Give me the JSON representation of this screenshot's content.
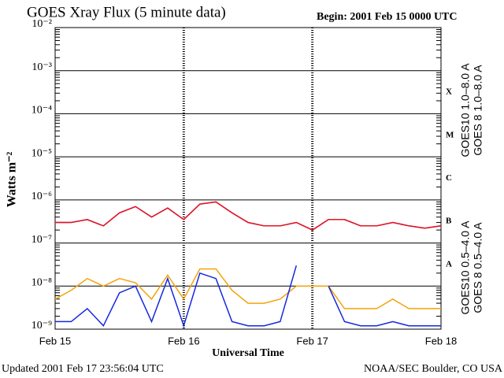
{
  "chart_data": {
    "type": "line",
    "title": "GOES Xray Flux (5 minute data)",
    "subtitle": "Begin:  2001 Feb 15 0000 UTC",
    "y_label": "Watts m⁻²",
    "x_label": "Universal Time",
    "footer_left": "Updated 2001 Feb 17 23:56:04 UTC",
    "footer_right": "NOAA/SEC Boulder, CO USA",
    "log_y": true,
    "grid": true,
    "flare_classes": [
      "A",
      "B",
      "C",
      "M",
      "X"
    ],
    "xlim": [
      0,
      72
    ],
    "xticks": [
      {
        "value": 0,
        "label": "Feb 15"
      },
      {
        "value": 24,
        "label": "Feb 16"
      },
      {
        "value": 48,
        "label": "Feb 17"
      },
      {
        "value": 72,
        "label": "Feb 18"
      }
    ],
    "ylim": [
      1e-09,
      0.01
    ],
    "yticks": [
      {
        "value": 1e-09,
        "label": "10⁻⁹"
      },
      {
        "value": 1e-08,
        "label": "10⁻⁸"
      },
      {
        "value": 1e-07,
        "label": "10⁻⁷"
      },
      {
        "value": 1e-06,
        "label": "10⁻⁶"
      },
      {
        "value": 1e-05,
        "label": "10⁻⁵"
      },
      {
        "value": 0.0001,
        "label": "10⁻⁴"
      },
      {
        "value": 0.001,
        "label": "10⁻³"
      },
      {
        "value": 0.01,
        "label": "10⁻²"
      }
    ],
    "x": [
      0,
      3,
      6,
      9,
      12,
      15,
      18,
      21,
      24,
      27,
      30,
      33,
      36,
      39,
      42,
      45,
      48,
      51,
      54,
      57,
      60,
      63,
      66,
      69,
      72
    ],
    "series": [
      {
        "name": "GOES10 1.0–8.0 A",
        "color": "#7b2fa8",
        "values": [
          3e-07,
          3e-07,
          3.5e-07,
          2.5e-07,
          5e-07,
          7e-07,
          4e-07,
          6.5e-07,
          3.5e-07,
          8e-07,
          9e-07,
          5e-07,
          3e-07,
          2.5e-07,
          2.5e-07,
          3e-07,
          2e-07,
          3.5e-07,
          3.5e-07,
          2.5e-07,
          2.5e-07,
          3e-07,
          2.5e-07,
          2.2e-07,
          2.5e-07
        ]
      },
      {
        "name": "GOES 8 1.0–8.0 A",
        "color": "#e8141e",
        "values": [
          3e-07,
          3e-07,
          3.5e-07,
          2.5e-07,
          5e-07,
          7e-07,
          4e-07,
          6.5e-07,
          3.5e-07,
          8e-07,
          9e-07,
          5e-07,
          3e-07,
          2.5e-07,
          2.5e-07,
          3e-07,
          2e-07,
          3.5e-07,
          3.5e-07,
          2.5e-07,
          2.5e-07,
          3e-07,
          2.5e-07,
          2.2e-07,
          2.5e-07
        ]
      },
      {
        "name": "GOES10 0.5–4.0 A",
        "color": "#f5a30a",
        "values": [
          5e-09,
          8e-09,
          1.5e-08,
          1e-08,
          1.5e-08,
          1.2e-08,
          5e-09,
          1.8e-08,
          5e-09,
          2.5e-08,
          2.5e-08,
          8e-09,
          4e-09,
          4e-09,
          5e-09,
          1e-08,
          1e-08,
          1e-08,
          3e-09,
          3e-09,
          3e-09,
          5e-09,
          3e-09,
          3e-09,
          3e-09
        ]
      },
      {
        "name": "GOES 8 0.5–4.0 A",
        "color": "#1428e0",
        "values": [
          1.5e-09,
          1.5e-09,
          3e-09,
          1.2e-09,
          7e-09,
          1e-08,
          1.5e-09,
          1.5e-08,
          1.2e-09,
          2e-08,
          1.5e-08,
          1.5e-09,
          1.2e-09,
          1.2e-09,
          1.5e-09,
          3e-08,
          null,
          1e-08,
          1.5e-09,
          1.2e-09,
          1.2e-09,
          1.5e-09,
          1.2e-09,
          1.2e-09,
          1.2e-09
        ]
      }
    ]
  }
}
